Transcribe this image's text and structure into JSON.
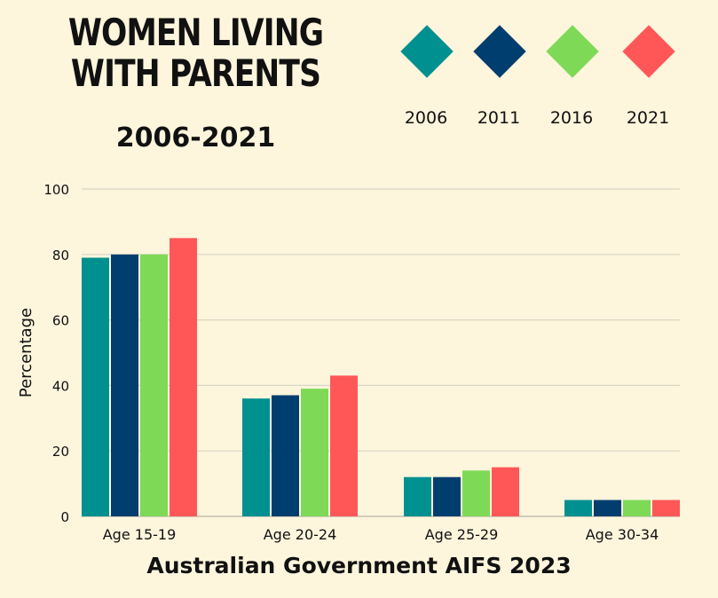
{
  "header": {
    "title": "WOMEN LIVING WITH PARENTS",
    "subtitle": "2006-2021"
  },
  "footer": {
    "source": "Australian Government AIFS 2023"
  },
  "colors": {
    "background": "#fdf5dc",
    "gridline": "#d9d6c6"
  },
  "chart_data": {
    "type": "bar",
    "categories": [
      "Age 15-19",
      "Age 20-24",
      "Age 25-29",
      "Age 30-34"
    ],
    "series": [
      {
        "name": "2006",
        "color": "#00908f",
        "values": [
          79,
          36,
          12,
          5
        ]
      },
      {
        "name": "2011",
        "color": "#003e6f",
        "values": [
          80,
          37,
          12,
          5
        ]
      },
      {
        "name": "2016",
        "color": "#7ed957",
        "values": [
          80,
          39,
          14,
          5
        ]
      },
      {
        "name": "2021",
        "color": "#ff5757",
        "values": [
          85,
          43,
          15,
          5
        ]
      }
    ],
    "ylabel": "Percentage",
    "ylim": [
      0,
      100
    ],
    "yticks": [
      "0",
      "20",
      "40",
      "60",
      "80",
      "100"
    ],
    "grid": true,
    "legend": "top-right"
  }
}
